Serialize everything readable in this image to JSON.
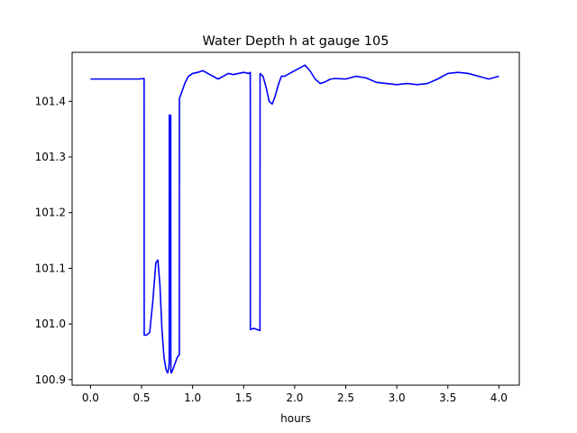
{
  "chart_data": {
    "type": "line",
    "title": "Water Depth h at gauge 105",
    "xlabel": "hours",
    "ylabel": "",
    "xlim": [
      -0.18,
      4.2
    ],
    "ylim": [
      100.89,
      101.488
    ],
    "xticks": [
      0.0,
      0.5,
      1.0,
      1.5,
      2.0,
      2.5,
      3.0,
      3.5,
      4.0
    ],
    "xtick_labels": [
      "0.0",
      "0.5",
      "1.0",
      "1.5",
      "2.0",
      "2.5",
      "3.0",
      "3.5",
      "4.0"
    ],
    "yticks": [
      100.9,
      101.0,
      101.1,
      101.2,
      101.3,
      101.4
    ],
    "ytick_labels": [
      "100.9",
      "101.0",
      "101.1",
      "101.2",
      "101.3",
      "101.4"
    ],
    "grid": false,
    "series": [
      {
        "color": "#0000ff",
        "x": [
          0.0,
          0.1,
          0.2,
          0.3,
          0.4,
          0.47,
          0.525,
          0.526,
          0.55,
          0.58,
          0.61,
          0.64,
          0.66,
          0.68,
          0.7,
          0.72,
          0.74,
          0.755,
          0.765,
          0.771,
          0.772,
          0.78,
          0.786,
          0.787,
          0.79,
          0.8,
          0.82,
          0.85,
          0.87,
          0.871,
          0.9,
          0.93,
          0.96,
          1.0,
          1.05,
          1.1,
          1.15,
          1.2,
          1.25,
          1.3,
          1.35,
          1.4,
          1.45,
          1.5,
          1.55,
          1.565,
          1.566,
          1.6,
          1.63,
          1.66,
          1.661,
          1.69,
          1.72,
          1.75,
          1.78,
          1.81,
          1.84,
          1.87,
          1.9,
          1.95,
          2.0,
          2.05,
          2.1,
          2.15,
          2.2,
          2.25,
          2.3,
          2.35,
          2.4,
          2.5,
          2.6,
          2.7,
          2.8,
          2.9,
          3.0,
          3.1,
          3.2,
          3.3,
          3.4,
          3.5,
          3.6,
          3.7,
          3.8,
          3.9,
          4.0
        ],
        "values": [
          101.44,
          101.44,
          101.44,
          101.44,
          101.44,
          101.44,
          101.441,
          100.98,
          100.98,
          100.985,
          101.04,
          101.11,
          101.115,
          101.07,
          100.99,
          100.94,
          100.918,
          100.912,
          100.92,
          100.93,
          101.375,
          101.375,
          101.375,
          100.915,
          100.912,
          100.915,
          100.925,
          100.94,
          100.945,
          101.405,
          101.42,
          101.435,
          101.445,
          101.45,
          101.452,
          101.455,
          101.45,
          101.445,
          101.44,
          101.445,
          101.45,
          101.448,
          101.45,
          101.452,
          101.45,
          101.452,
          100.99,
          100.992,
          100.99,
          100.988,
          101.45,
          101.445,
          101.425,
          101.4,
          101.395,
          101.41,
          101.43,
          101.445,
          101.445,
          101.45,
          101.455,
          101.46,
          101.465,
          101.455,
          101.44,
          101.432,
          101.435,
          101.44,
          101.441,
          101.44,
          101.445,
          101.442,
          101.434,
          101.432,
          101.43,
          101.432,
          101.43,
          101.432,
          101.44,
          101.45,
          101.452,
          101.45,
          101.445,
          101.44,
          101.445
        ]
      }
    ]
  }
}
